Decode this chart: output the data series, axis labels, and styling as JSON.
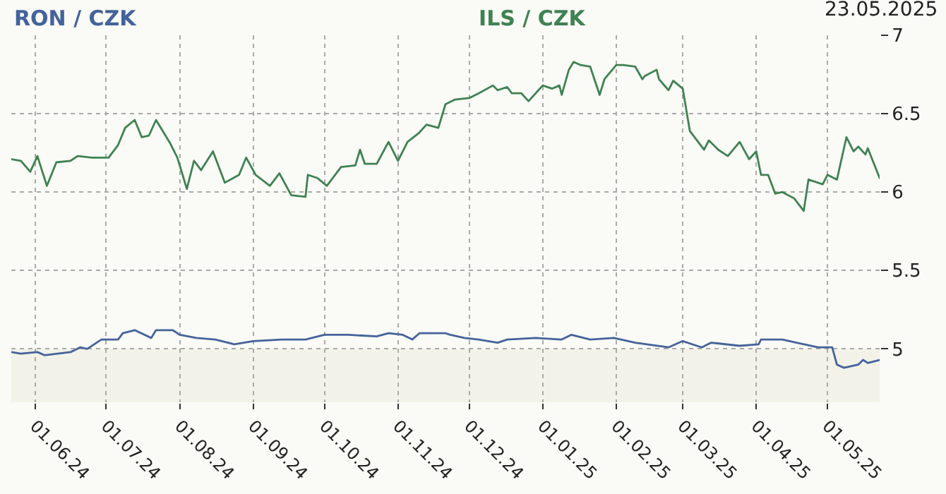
{
  "chart_data": {
    "type": "line",
    "annotations": [
      "23.05.2025"
    ],
    "xlim": [
      "2024-05-22",
      "2025-05-23"
    ],
    "xticks": [
      {
        "value": "2024-06-01",
        "label": "01.06.24"
      },
      {
        "value": "2024-07-01",
        "label": "01.07.24"
      },
      {
        "value": "2024-08-01",
        "label": "01.08.24"
      },
      {
        "value": "2024-09-01",
        "label": "01.09.24"
      },
      {
        "value": "2024-10-01",
        "label": "01.10.24"
      },
      {
        "value": "2024-11-01",
        "label": "01.11.24"
      },
      {
        "value": "2024-12-01",
        "label": "01.12.24"
      },
      {
        "value": "2025-01-01",
        "label": "01.01.25"
      },
      {
        "value": "2025-02-01",
        "label": "01.02.25"
      },
      {
        "value": "2025-03-01",
        "label": "01.03.25"
      },
      {
        "value": "2025-04-01",
        "label": "01.04.25"
      },
      {
        "value": "2025-05-01",
        "label": "01.05.25"
      }
    ],
    "ylim": [
      4.66,
      7
    ],
    "yticks": [
      5,
      5.5,
      6,
      6.5,
      7
    ],
    "grid": true,
    "legend": false,
    "marker": "none",
    "line_style": "solid",
    "bands": [
      {
        "axis": "y",
        "from": 4.66,
        "to": 5,
        "color": "#f2f2e9"
      }
    ],
    "series": [
      {
        "name": "RON / CZK",
        "color": "#44639a",
        "x": [
          "2024-05-22",
          "2024-05-26",
          "2024-06-02",
          "2024-06-05",
          "2024-06-16",
          "2024-06-20",
          "2024-06-23",
          "2024-06-29",
          "2024-07-06",
          "2024-07-08",
          "2024-07-13",
          "2024-07-20",
          "2024-07-22",
          "2024-07-29",
          "2024-08-01",
          "2024-08-08",
          "2024-08-16",
          "2024-08-24",
          "2024-09-01",
          "2024-09-13",
          "2024-09-23",
          "2024-10-01",
          "2024-10-11",
          "2024-10-23",
          "2024-10-28",
          "2024-11-03",
          "2024-11-07",
          "2024-11-10",
          "2024-11-21",
          "2024-11-23",
          "2024-11-29",
          "2024-12-05",
          "2024-12-13",
          "2024-12-17",
          "2024-12-29",
          "2025-01-09",
          "2025-01-13",
          "2025-01-21",
          "2025-01-31",
          "2025-02-09",
          "2025-02-23",
          "2025-03-01",
          "2025-03-09",
          "2025-03-13",
          "2025-03-25",
          "2025-04-02",
          "2025-04-03",
          "2025-04-12",
          "2025-04-18",
          "2025-04-27",
          "2025-05-03",
          "2025-05-05",
          "2025-05-08",
          "2025-05-14",
          "2025-05-16",
          "2025-05-18",
          "2025-05-23"
        ],
        "values": [
          4.98,
          4.97,
          4.98,
          4.96,
          4.98,
          5.01,
          5.0,
          5.06,
          5.06,
          5.1,
          5.12,
          5.07,
          5.12,
          5.12,
          5.09,
          5.07,
          5.06,
          5.03,
          5.05,
          5.06,
          5.06,
          5.09,
          5.09,
          5.08,
          5.1,
          5.09,
          5.06,
          5.1,
          5.1,
          5.09,
          5.07,
          5.06,
          5.04,
          5.06,
          5.07,
          5.06,
          5.09,
          5.06,
          5.07,
          5.04,
          5.01,
          5.05,
          5.01,
          5.04,
          5.02,
          5.03,
          5.06,
          5.06,
          5.04,
          5.01,
          5.01,
          4.9,
          4.88,
          4.9,
          4.93,
          4.91,
          4.93
        ]
      },
      {
        "name": "ILS / CZK",
        "color": "#3f8253",
        "x": [
          "2024-05-22",
          "2024-05-26",
          "2024-05-30",
          "2024-06-02",
          "2024-06-06",
          "2024-06-10",
          "2024-06-16",
          "2024-06-19",
          "2024-06-25",
          "2024-07-02",
          "2024-07-06",
          "2024-07-09",
          "2024-07-13",
          "2024-07-16",
          "2024-07-19",
          "2024-07-22",
          "2024-07-28",
          "2024-07-31",
          "2024-08-04",
          "2024-08-07",
          "2024-08-10",
          "2024-08-15",
          "2024-08-20",
          "2024-08-26",
          "2024-08-29",
          "2024-09-02",
          "2024-09-08",
          "2024-09-12",
          "2024-09-17",
          "2024-09-23",
          "2024-09-24",
          "2024-09-28",
          "2024-10-02",
          "2024-10-08",
          "2024-10-14",
          "2024-10-16",
          "2024-10-18",
          "2024-10-23",
          "2024-10-28",
          "2024-11-01",
          "2024-11-05",
          "2024-11-10",
          "2024-11-13",
          "2024-11-18",
          "2024-11-21",
          "2024-11-25",
          "2024-12-01",
          "2024-12-05",
          "2024-12-11",
          "2024-12-13",
          "2024-12-17",
          "2024-12-19",
          "2024-12-23",
          "2024-12-26",
          "2025-01-01",
          "2025-01-05",
          "2025-01-08",
          "2025-01-09",
          "2025-01-12",
          "2025-01-14",
          "2025-01-17",
          "2025-01-21",
          "2025-01-25",
          "2025-01-27",
          "2025-02-01",
          "2025-02-04",
          "2025-02-09",
          "2025-02-12",
          "2025-02-13",
          "2025-02-18",
          "2025-02-19",
          "2025-02-23",
          "2025-02-25",
          "2025-03-01",
          "2025-03-04",
          "2025-03-07",
          "2025-03-10",
          "2025-03-12",
          "2025-03-16",
          "2025-03-20",
          "2025-03-25",
          "2025-03-29",
          "2025-04-01",
          "2025-04-03",
          "2025-04-06",
          "2025-04-09",
          "2025-04-12",
          "2025-04-17",
          "2025-04-21",
          "2025-04-23",
          "2025-04-29",
          "2025-05-01",
          "2025-05-05",
          "2025-05-09",
          "2025-05-12",
          "2025-05-14",
          "2025-05-17",
          "2025-05-18",
          "2025-05-23"
        ],
        "values": [
          6.21,
          6.2,
          6.13,
          6.23,
          6.04,
          6.19,
          6.2,
          6.23,
          6.22,
          6.22,
          6.3,
          6.41,
          6.46,
          6.35,
          6.36,
          6.46,
          6.31,
          6.22,
          6.02,
          6.2,
          6.14,
          6.26,
          6.06,
          6.11,
          6.22,
          6.11,
          6.04,
          6.12,
          5.98,
          5.97,
          6.11,
          6.09,
          6.04,
          6.16,
          6.17,
          6.27,
          6.18,
          6.18,
          6.32,
          6.2,
          6.32,
          6.38,
          6.43,
          6.41,
          6.56,
          6.59,
          6.6,
          6.63,
          6.68,
          6.65,
          6.67,
          6.63,
          6.63,
          6.58,
          6.68,
          6.66,
          6.68,
          6.62,
          6.78,
          6.83,
          6.81,
          6.8,
          6.62,
          6.72,
          6.81,
          6.81,
          6.8,
          6.72,
          6.74,
          6.78,
          6.72,
          6.65,
          6.71,
          6.66,
          6.39,
          6.33,
          6.27,
          6.33,
          6.27,
          6.23,
          6.32,
          6.21,
          6.26,
          6.11,
          6.11,
          5.99,
          6.0,
          5.96,
          5.88,
          6.08,
          6.05,
          6.11,
          6.08,
          6.35,
          6.26,
          6.29,
          6.24,
          6.28,
          6.09
        ]
      }
    ]
  }
}
